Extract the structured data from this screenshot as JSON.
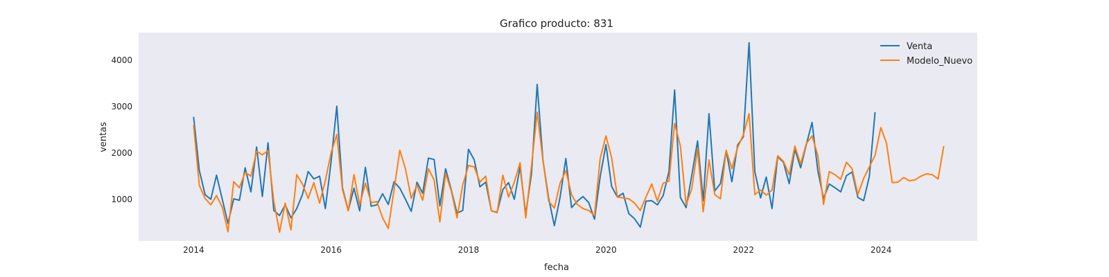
{
  "chart_data": {
    "type": "line",
    "title": "Grafico producto: 831",
    "xlabel": "fecha",
    "ylabel": "ventas",
    "xlim": [
      2013.2,
      2025.4
    ],
    "ylim": [
      100,
      4600
    ],
    "x_ticks": [
      2014,
      2016,
      2018,
      2020,
      2022,
      2024
    ],
    "x_tick_labels": [
      "2014",
      "2016",
      "2018",
      "2020",
      "2022",
      "2024"
    ],
    "y_ticks": [
      1000,
      2000,
      3000,
      4000
    ],
    "y_tick_labels": [
      "1000",
      "2000",
      "3000",
      "4000"
    ],
    "grid": false,
    "legend_position": "top-right",
    "background": "#eaeaf2",
    "x_start": 2014.0,
    "x_step_per_point": 0.0833,
    "series": [
      {
        "name": "Venta",
        "color": "#1f77b4",
        "values": [
          2780,
          1620,
          1100,
          1000,
          1520,
          1000,
          480,
          1010,
          980,
          1680,
          1160,
          2130,
          1060,
          2220,
          760,
          650,
          880,
          600,
          800,
          1100,
          1600,
          1440,
          1500,
          800,
          1800,
          3010,
          1250,
          760,
          1240,
          750,
          1690,
          850,
          880,
          1120,
          890,
          1380,
          1240,
          1000,
          740,
          1370,
          1130,
          1890,
          1860,
          860,
          1660,
          1200,
          700,
          760,
          2080,
          1850,
          1270,
          1370,
          750,
          720,
          1210,
          1360,
          1000,
          1700,
          680,
          1550,
          3480,
          1850,
          1020,
          430,
          1050,
          1880,
          820,
          960,
          1060,
          930,
          570,
          1490,
          2180,
          1280,
          1050,
          1130,
          690,
          580,
          400,
          960,
          970,
          880,
          1080,
          1600,
          3360,
          1040,
          820,
          1520,
          2260,
          970,
          2850,
          1180,
          1340,
          2050,
          1380,
          2170,
          2350,
          4380,
          1600,
          1030,
          1480,
          800,
          1920,
          1800,
          1340,
          2080,
          1680,
          2180,
          2660,
          1620,
          1020,
          1330,
          1250,
          1160,
          1510,
          1590,
          1040,
          970,
          1490,
          2880
        ]
      },
      {
        "name": "Modelo_Nuevo",
        "color": "#ff7f0e",
        "values": [
          2600,
          1300,
          1020,
          880,
          1080,
          830,
          300,
          1380,
          1250,
          1580,
          1500,
          2040,
          1960,
          2050,
          960,
          290,
          920,
          340,
          1530,
          1330,
          1020,
          1360,
          920,
          1400,
          2000,
          2400,
          1210,
          750,
          1530,
          880,
          1350,
          930,
          950,
          600,
          370,
          1200,
          2060,
          1660,
          1020,
          1310,
          980,
          1660,
          1420,
          510,
          1560,
          1180,
          600,
          1310,
          1730,
          1700,
          1370,
          1500,
          750,
          710,
          1520,
          1050,
          1370,
          1790,
          600,
          1720,
          2880,
          1840,
          960,
          810,
          1350,
          1620,
          1100,
          890,
          800,
          760,
          650,
          1880,
          2370,
          1900,
          1050,
          1030,
          1010,
          920,
          760,
          1050,
          1330,
          960,
          1350,
          1390,
          2640,
          2150,
          880,
          1230,
          2090,
          730,
          1850,
          1100,
          1010,
          2060,
          1660,
          2120,
          2390,
          2850,
          1100,
          1200,
          1090,
          1200,
          1940,
          1820,
          1530,
          2150,
          1760,
          2200,
          2370,
          1950,
          890,
          1600,
          1530,
          1430,
          1800,
          1660,
          1100,
          1450,
          1700,
          1950,
          2550,
          2210,
          1360,
          1370,
          1470,
          1400,
          1420,
          1500,
          1550,
          1530,
          1440,
          2150
        ]
      }
    ]
  }
}
